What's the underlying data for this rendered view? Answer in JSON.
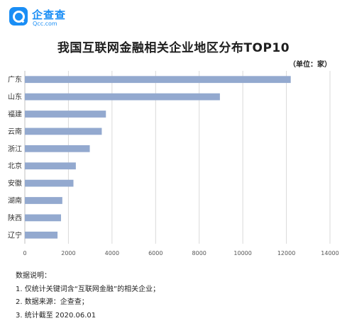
{
  "logo": {
    "name": "企查查",
    "domain": "Qcc.com",
    "icon": "magnifier-logo-icon",
    "color": "#1a8ef5"
  },
  "chart_data": {
    "type": "bar",
    "orientation": "horizontal",
    "title": "我国互联网金融相关企业地区分布TOP10",
    "unit_label": "（单位：家）",
    "categories": [
      "广东",
      "山东",
      "福建",
      "云南",
      "浙江",
      "北京",
      "安徽",
      "湖南",
      "陕西",
      "辽宁"
    ],
    "values": [
      12200,
      8950,
      3720,
      3530,
      2980,
      2340,
      2230,
      1720,
      1660,
      1500
    ],
    "xlim": [
      0,
      14000
    ],
    "xticks": [
      0,
      2000,
      4000,
      6000,
      8000,
      10000,
      12000,
      14000
    ],
    "bar_color": "#93a9cf",
    "grid": true,
    "legend": "none"
  },
  "notes": {
    "heading": "数据说明：",
    "items": [
      "1. 仅统计关键词含“互联网金融”的相关企业；",
      "2. 数据来源：企查查；",
      "3. 统计截至 2020.06.01"
    ]
  }
}
